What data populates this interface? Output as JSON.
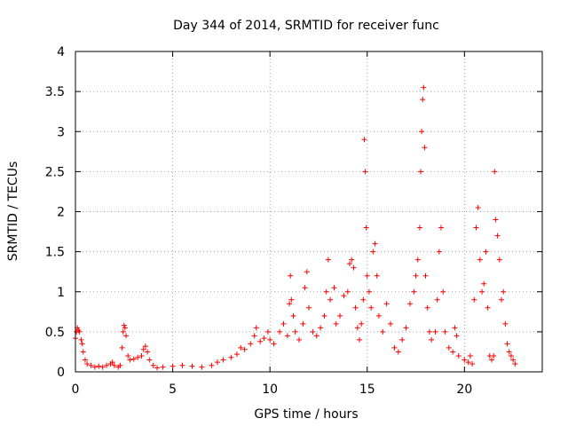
{
  "chart_data": {
    "type": "scatter",
    "title": "Day 344 of 2014, SRMTID for receiver func",
    "xlabel": "GPS time / hours",
    "ylabel": "SRMTID / TECUs",
    "xlim": [
      0,
      24
    ],
    "ylim": [
      0,
      4
    ],
    "xticks": [
      0,
      5,
      10,
      15,
      20
    ],
    "yticks": [
      0,
      0.5,
      1,
      1.5,
      2,
      2.5,
      3,
      3.5,
      4
    ],
    "grid": true,
    "marker": "+",
    "colors": {
      "series": "#ff0000",
      "grid": "#a0a0a0",
      "axis": "#000000"
    },
    "series": [
      {
        "name": "SRMTID",
        "points": [
          [
            0.0,
            0.42
          ],
          [
            0.05,
            0.5
          ],
          [
            0.1,
            0.55
          ],
          [
            0.15,
            0.52
          ],
          [
            0.2,
            0.5
          ],
          [
            0.3,
            0.4
          ],
          [
            0.35,
            0.35
          ],
          [
            0.4,
            0.25
          ],
          [
            0.5,
            0.15
          ],
          [
            0.6,
            0.1
          ],
          [
            0.8,
            0.08
          ],
          [
            1.0,
            0.06
          ],
          [
            1.2,
            0.07
          ],
          [
            1.4,
            0.06
          ],
          [
            1.6,
            0.08
          ],
          [
            1.8,
            0.1
          ],
          [
            1.9,
            0.12
          ],
          [
            2.0,
            0.08
          ],
          [
            2.2,
            0.06
          ],
          [
            2.3,
            0.08
          ],
          [
            2.4,
            0.3
          ],
          [
            2.45,
            0.5
          ],
          [
            2.5,
            0.58
          ],
          [
            2.55,
            0.55
          ],
          [
            2.6,
            0.45
          ],
          [
            2.7,
            0.2
          ],
          [
            2.8,
            0.15
          ],
          [
            3.0,
            0.16
          ],
          [
            3.2,
            0.18
          ],
          [
            3.4,
            0.2
          ],
          [
            3.5,
            0.28
          ],
          [
            3.6,
            0.32
          ],
          [
            3.7,
            0.25
          ],
          [
            3.8,
            0.15
          ],
          [
            4.0,
            0.08
          ],
          [
            4.2,
            0.05
          ],
          [
            4.5,
            0.06
          ],
          [
            5.0,
            0.07
          ],
          [
            5.5,
            0.08
          ],
          [
            6.0,
            0.07
          ],
          [
            6.5,
            0.06
          ],
          [
            7.0,
            0.08
          ],
          [
            7.3,
            0.12
          ],
          [
            7.6,
            0.15
          ],
          [
            8.0,
            0.18
          ],
          [
            8.3,
            0.22
          ],
          [
            8.5,
            0.3
          ],
          [
            8.7,
            0.28
          ],
          [
            9.0,
            0.35
          ],
          [
            9.2,
            0.45
          ],
          [
            9.3,
            0.55
          ],
          [
            9.5,
            0.38
          ],
          [
            9.7,
            0.42
          ],
          [
            9.9,
            0.5
          ],
          [
            10.0,
            0.4
          ],
          [
            10.2,
            0.35
          ],
          [
            10.5,
            0.5
          ],
          [
            10.7,
            0.6
          ],
          [
            10.9,
            0.45
          ],
          [
            11.0,
            0.85
          ],
          [
            11.05,
            1.2
          ],
          [
            11.1,
            0.9
          ],
          [
            11.2,
            0.7
          ],
          [
            11.3,
            0.5
          ],
          [
            11.5,
            0.4
          ],
          [
            11.7,
            0.6
          ],
          [
            11.8,
            1.05
          ],
          [
            11.9,
            1.25
          ],
          [
            12.0,
            0.8
          ],
          [
            12.2,
            0.5
          ],
          [
            12.4,
            0.45
          ],
          [
            12.6,
            0.55
          ],
          [
            12.8,
            0.7
          ],
          [
            12.9,
            1.0
          ],
          [
            13.0,
            1.4
          ],
          [
            13.1,
            0.9
          ],
          [
            13.3,
            1.05
          ],
          [
            13.4,
            0.6
          ],
          [
            13.6,
            0.7
          ],
          [
            13.8,
            0.95
          ],
          [
            14.0,
            1.0
          ],
          [
            14.1,
            1.35
          ],
          [
            14.2,
            1.4
          ],
          [
            14.3,
            1.3
          ],
          [
            14.4,
            0.8
          ],
          [
            14.5,
            0.55
          ],
          [
            14.6,
            0.4
          ],
          [
            14.7,
            0.6
          ],
          [
            14.8,
            0.9
          ],
          [
            14.85,
            2.9
          ],
          [
            14.9,
            2.5
          ],
          [
            14.95,
            1.8
          ],
          [
            15.0,
            1.2
          ],
          [
            15.1,
            1.0
          ],
          [
            15.2,
            0.8
          ],
          [
            15.3,
            1.5
          ],
          [
            15.4,
            1.6
          ],
          [
            15.5,
            1.2
          ],
          [
            15.6,
            0.7
          ],
          [
            15.8,
            0.5
          ],
          [
            16.0,
            0.85
          ],
          [
            16.2,
            0.6
          ],
          [
            16.4,
            0.3
          ],
          [
            16.6,
            0.25
          ],
          [
            16.8,
            0.4
          ],
          [
            17.0,
            0.55
          ],
          [
            17.2,
            0.85
          ],
          [
            17.4,
            1.0
          ],
          [
            17.5,
            1.2
          ],
          [
            17.6,
            1.4
          ],
          [
            17.7,
            1.8
          ],
          [
            17.75,
            2.5
          ],
          [
            17.8,
            3.0
          ],
          [
            17.85,
            3.4
          ],
          [
            17.9,
            3.55
          ],
          [
            17.95,
            2.8
          ],
          [
            18.0,
            1.2
          ],
          [
            18.1,
            0.8
          ],
          [
            18.2,
            0.5
          ],
          [
            18.3,
            0.4
          ],
          [
            18.5,
            0.5
          ],
          [
            18.6,
            0.9
          ],
          [
            18.7,
            1.5
          ],
          [
            18.8,
            1.8
          ],
          [
            18.9,
            1.0
          ],
          [
            19.0,
            0.5
          ],
          [
            19.2,
            0.3
          ],
          [
            19.4,
            0.25
          ],
          [
            19.5,
            0.55
          ],
          [
            19.6,
            0.45
          ],
          [
            19.7,
            0.2
          ],
          [
            20.0,
            0.15
          ],
          [
            20.2,
            0.12
          ],
          [
            20.3,
            0.2
          ],
          [
            20.4,
            0.1
          ],
          [
            20.5,
            0.9
          ],
          [
            20.6,
            1.8
          ],
          [
            20.7,
            2.05
          ],
          [
            20.8,
            1.4
          ],
          [
            20.9,
            1.0
          ],
          [
            21.0,
            1.1
          ],
          [
            21.1,
            1.5
          ],
          [
            21.2,
            0.8
          ],
          [
            21.3,
            0.2
          ],
          [
            21.4,
            0.15
          ],
          [
            21.5,
            0.2
          ],
          [
            21.55,
            2.5
          ],
          [
            21.6,
            1.9
          ],
          [
            21.7,
            1.7
          ],
          [
            21.8,
            1.4
          ],
          [
            21.9,
            0.9
          ],
          [
            22.0,
            1.0
          ],
          [
            22.1,
            0.6
          ],
          [
            22.2,
            0.35
          ],
          [
            22.3,
            0.25
          ],
          [
            22.4,
            0.2
          ],
          [
            22.5,
            0.15
          ],
          [
            22.6,
            0.1
          ]
        ]
      }
    ]
  }
}
